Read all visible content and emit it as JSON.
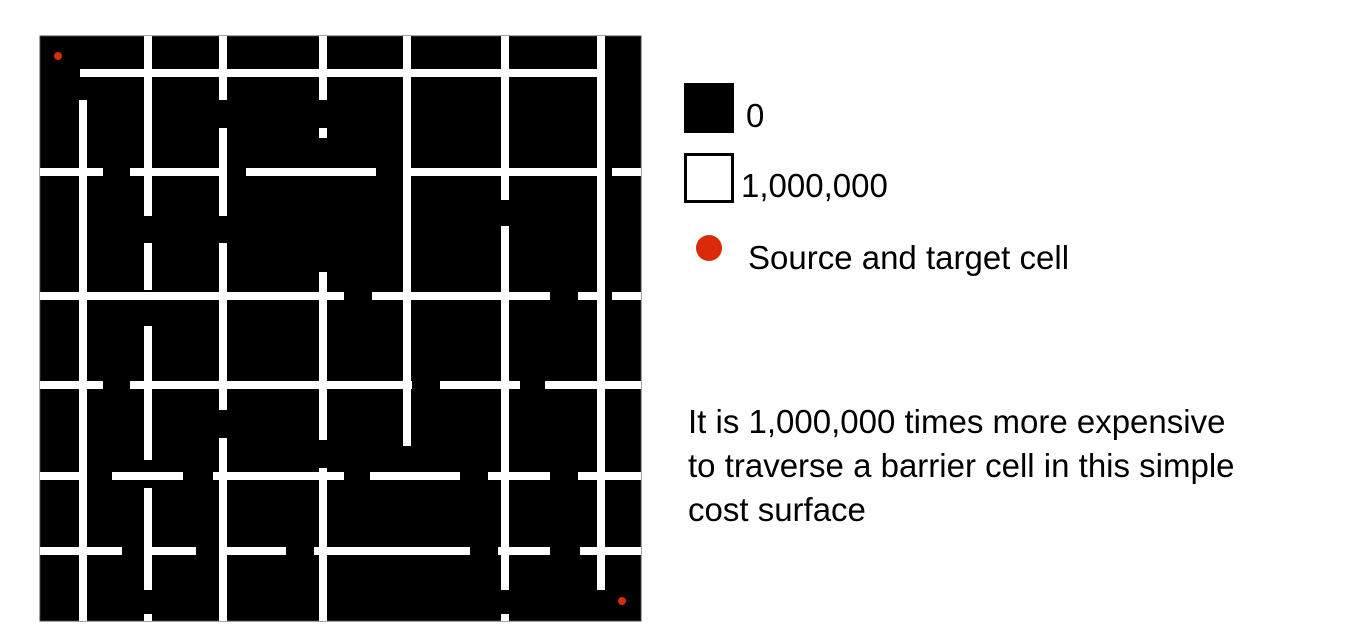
{
  "colors": {
    "background": "#000000",
    "barrier": "#ffffff",
    "point": "#d92b0a",
    "frame": "#444444"
  },
  "legend": {
    "items": [
      {
        "swatch": "black-square",
        "label": "0"
      },
      {
        "swatch": "white-square",
        "label": "1,000,000"
      },
      {
        "swatch": "red-dot",
        "label": "Source and target cell"
      }
    ]
  },
  "note": {
    "lines": [
      "It is 1,000,000 times more expensive",
      "to traverse a barrier cell in this simple",
      "cost surface"
    ]
  }
}
